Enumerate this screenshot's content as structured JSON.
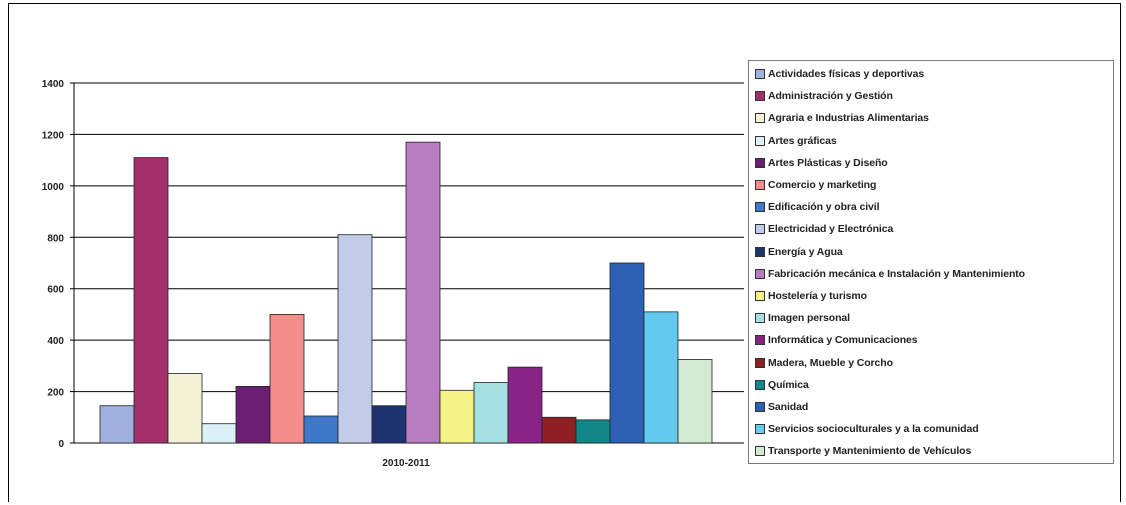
{
  "chart_data": {
    "type": "bar",
    "title": "",
    "xlabel": "",
    "ylabel": "",
    "categories": [
      "2010-2011"
    ],
    "ylim": [
      0,
      1400
    ],
    "yticks": [
      "0",
      "200",
      "400",
      "600",
      "800",
      "1000",
      "1200",
      "1400"
    ],
    "grid": true,
    "legend_position": "right",
    "series": [
      {
        "name": "Actividades físicas y deportivas",
        "values": [
          145
        ],
        "color": "#9fb0df"
      },
      {
        "name": "Administración y Gestión",
        "values": [
          1110
        ],
        "color": "#a3306a"
      },
      {
        "name": "Agraria e Industrias Alimentarias",
        "values": [
          270
        ],
        "color": "#f4f1d7"
      },
      {
        "name": "Artes gráficas",
        "values": [
          75
        ],
        "color": "#d9f1f7"
      },
      {
        "name": "Artes Plásticas y Diseño",
        "values": [
          220
        ],
        "color": "#6a1f73"
      },
      {
        "name": "Comercio y marketing",
        "values": [
          500
        ],
        "color": "#f58d8a"
      },
      {
        "name": "Edificación y obra civil",
        "values": [
          105
        ],
        "color": "#3f78c8"
      },
      {
        "name": "Electricidad y Electrónica",
        "values": [
          810
        ],
        "color": "#c3cbeb"
      },
      {
        "name": "Energía y Agua",
        "values": [
          145
        ],
        "color": "#1c3370"
      },
      {
        "name": "Fabricación mecánica  e Instalación y  Mantenimiento",
        "values": [
          1170
        ],
        "color": "#b97bc1"
      },
      {
        "name": "Hostelería y turismo",
        "values": [
          205
        ],
        "color": "#f5f288"
      },
      {
        "name": "Imagen personal",
        "values": [
          235
        ],
        "color": "#a4dfe2"
      },
      {
        "name": "Informática y Comunicaciones",
        "values": [
          295
        ],
        "color": "#8a2386"
      },
      {
        "name": "Madera, Mueble y Corcho",
        "values": [
          100
        ],
        "color": "#8e1f22"
      },
      {
        "name": "Química",
        "values": [
          90
        ],
        "color": "#138787"
      },
      {
        "name": "Sanidad",
        "values": [
          700
        ],
        "color": "#2d5fb3"
      },
      {
        "name": "Servicios socioculturales y a la comunidad",
        "values": [
          510
        ],
        "color": "#63c9ef"
      },
      {
        "name": "Transporte y Mantenimiento de Vehículos",
        "values": [
          325
        ],
        "color": "#d3ead3"
      }
    ]
  }
}
